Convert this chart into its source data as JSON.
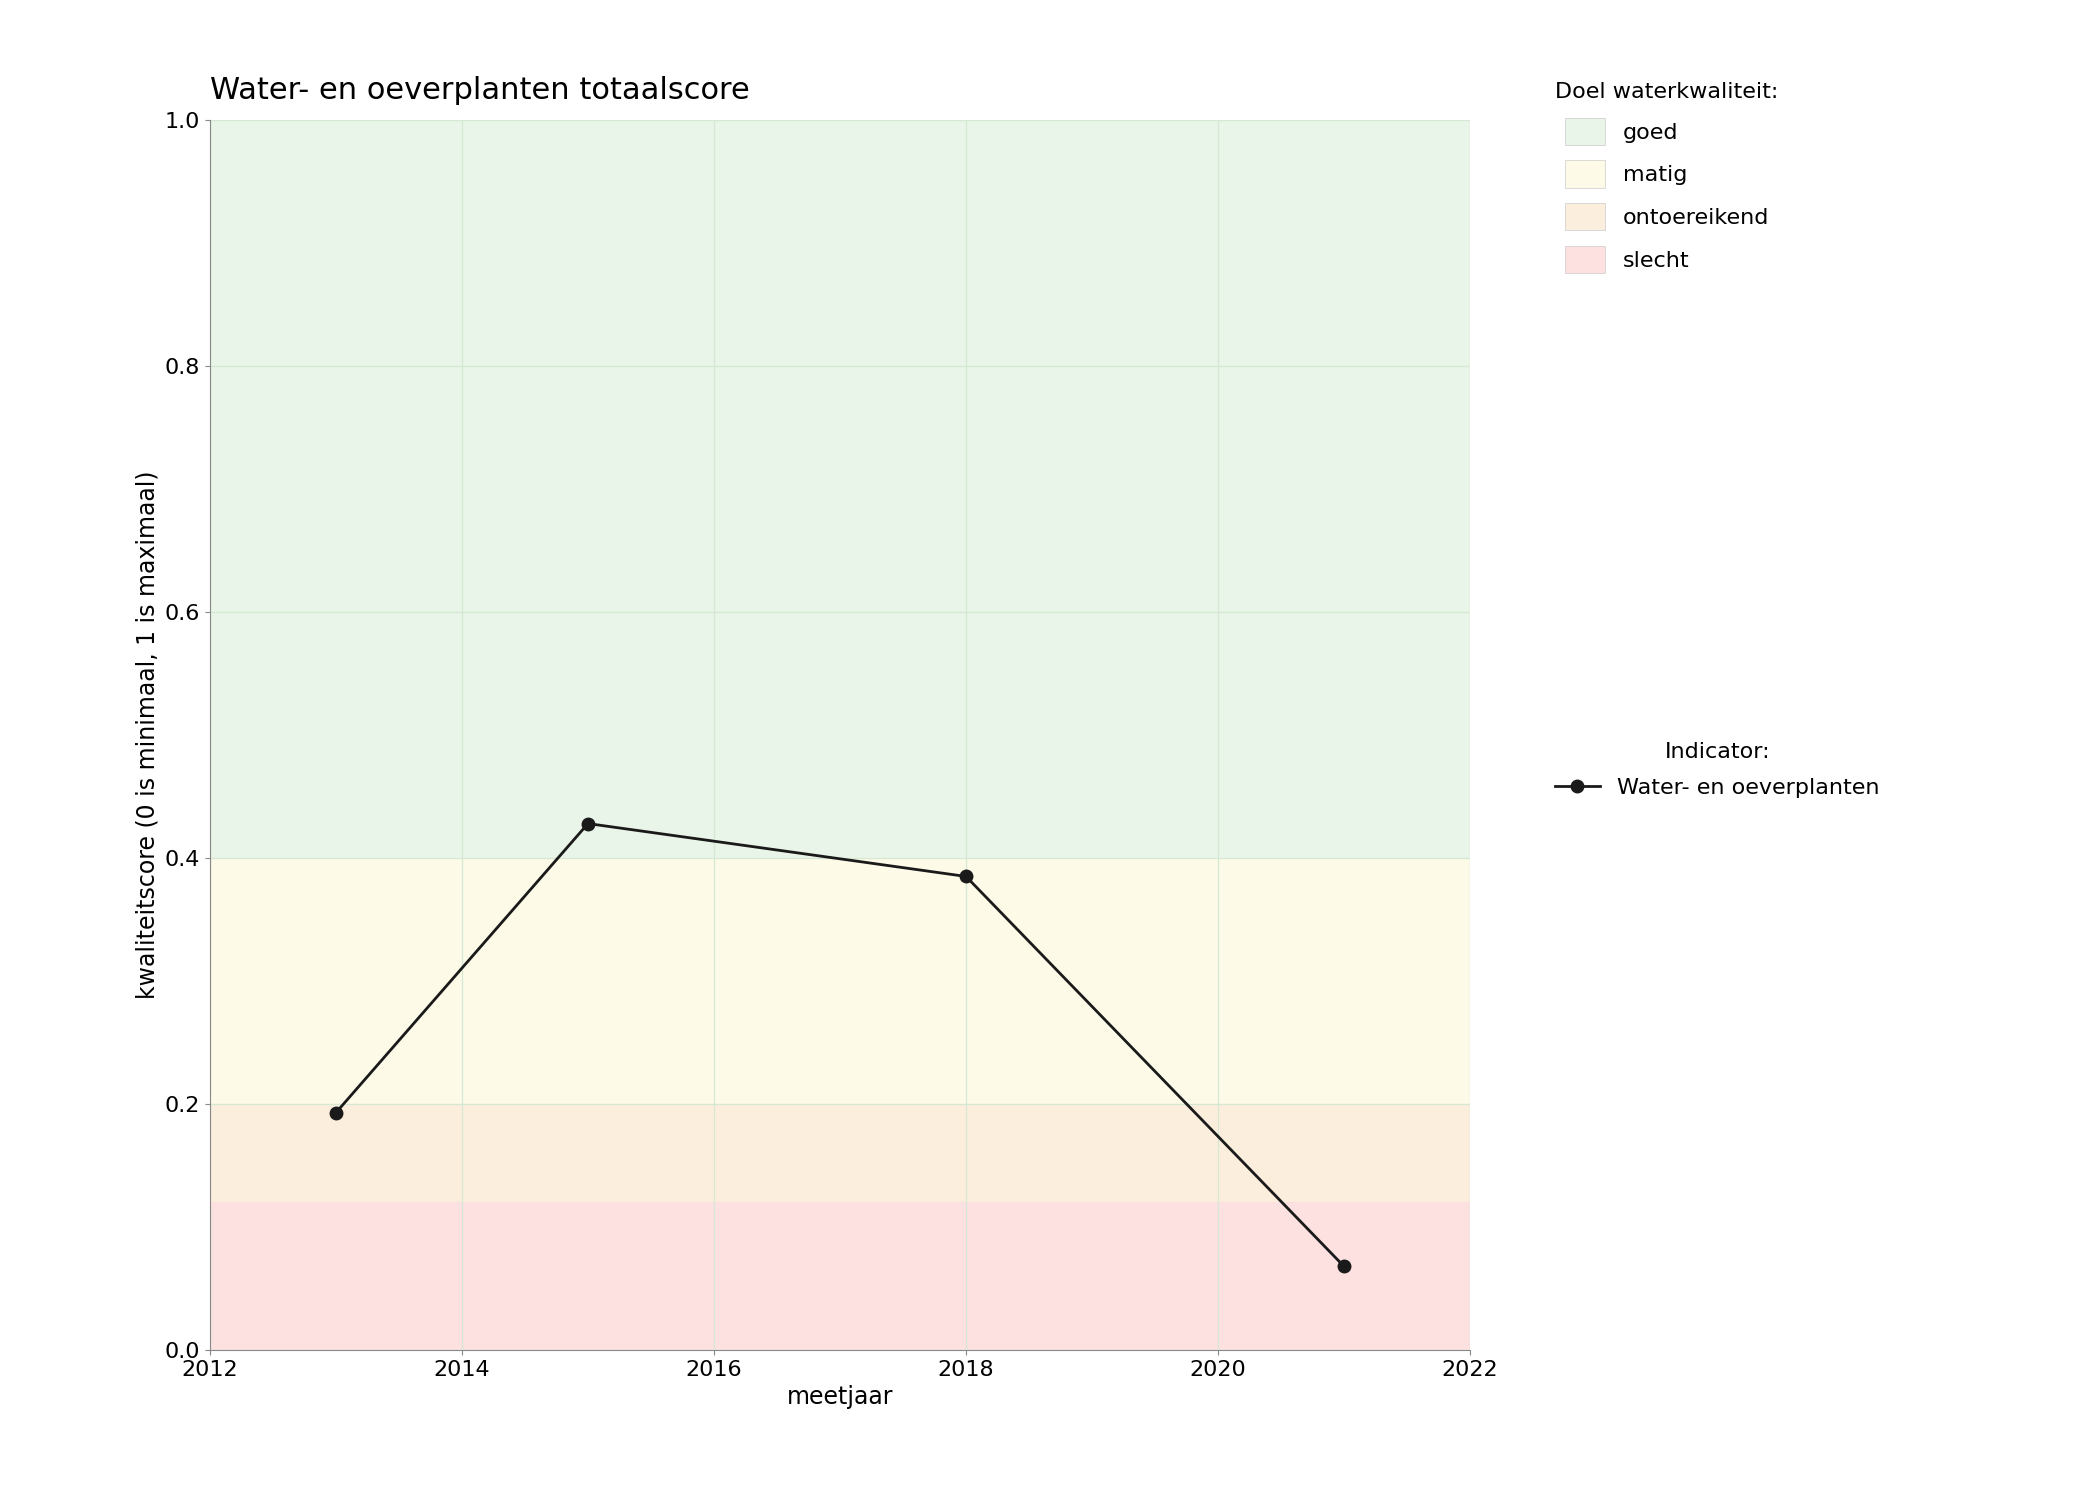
{
  "title": "Water- en oeverplanten totaalscore",
  "xlabel": "meetjaar",
  "ylabel": "kwaliteitscore (0 is minimaal, 1 is maximaal)",
  "xlim": [
    2012,
    2022
  ],
  "ylim": [
    0,
    1.0
  ],
  "xticks": [
    2012,
    2014,
    2016,
    2018,
    2020,
    2022
  ],
  "yticks": [
    0.0,
    0.2,
    0.4,
    0.6,
    0.8,
    1.0
  ],
  "years": [
    2013,
    2015,
    2018,
    2021
  ],
  "values": [
    0.193,
    0.428,
    0.385,
    0.068
  ],
  "bg_bands": [
    {
      "ymin": 0.4,
      "ymax": 1.0,
      "color": "#e8f5e8",
      "label": "goed"
    },
    {
      "ymin": 0.2,
      "ymax": 0.4,
      "color": "#fdfae8",
      "label": "matig"
    },
    {
      "ymin": 0.12,
      "ymax": 0.2,
      "color": "#fceedd",
      "label": "ontoereikend"
    },
    {
      "ymin": 0.0,
      "ymax": 0.12,
      "color": "#fde0e0",
      "label": "slecht"
    }
  ],
  "line_color": "#1a1a1a",
  "marker": "o",
  "markersize": 9,
  "linewidth": 2,
  "grid_color": "#d4e8d4",
  "background_color": "#ffffff",
  "legend_title_doel": "Doel waterkwaliteit:",
  "legend_title_indicator": "Indicator:",
  "legend_indicator_label": "Water- en oeverplanten",
  "title_fontsize": 22,
  "label_fontsize": 17,
  "tick_fontsize": 16,
  "legend_fontsize": 16
}
